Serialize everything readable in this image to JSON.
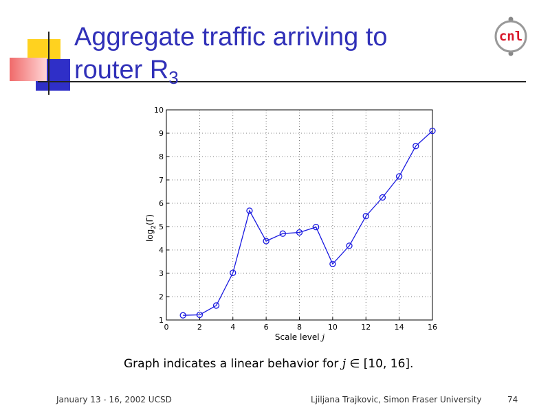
{
  "slide": {
    "title_main": "Aggregate traffic arriving to router R",
    "title_sub": "3",
    "caption_prefix": "Graph indicates a linear behavior for ",
    "caption_var": "j",
    "caption_suffix": " ∈ [10, 16].",
    "footer_left": "January 13 - 16, 2002 UCSD",
    "footer_center": "Ljiljana Trajkovic, Simon Fraser University",
    "page_number": "74",
    "logo_text": "cnl"
  },
  "chart_data": {
    "type": "line",
    "x": [
      1,
      2,
      3,
      4,
      5,
      6,
      7,
      8,
      9,
      10,
      11,
      12,
      13,
      14,
      15,
      16
    ],
    "y": [
      1.2,
      1.22,
      1.62,
      3.02,
      5.68,
      4.38,
      4.7,
      4.75,
      4.98,
      3.4,
      4.18,
      5.45,
      6.25,
      7.15,
      8.45,
      9.1
    ],
    "xlabel_main": "Scale level ",
    "xlabel_var": "j",
    "ylabel_main": "log",
    "ylabel_sub": "2",
    "ylabel_tail": "(Γ)",
    "xlim": [
      0,
      16
    ],
    "ylim": [
      1,
      10
    ],
    "xticks": [
      0,
      2,
      4,
      6,
      8,
      10,
      12,
      14,
      16
    ],
    "yticks": [
      1,
      2,
      3,
      4,
      5,
      6,
      7,
      8,
      9,
      10
    ],
    "grid": true,
    "color": "#1a1ae0"
  }
}
